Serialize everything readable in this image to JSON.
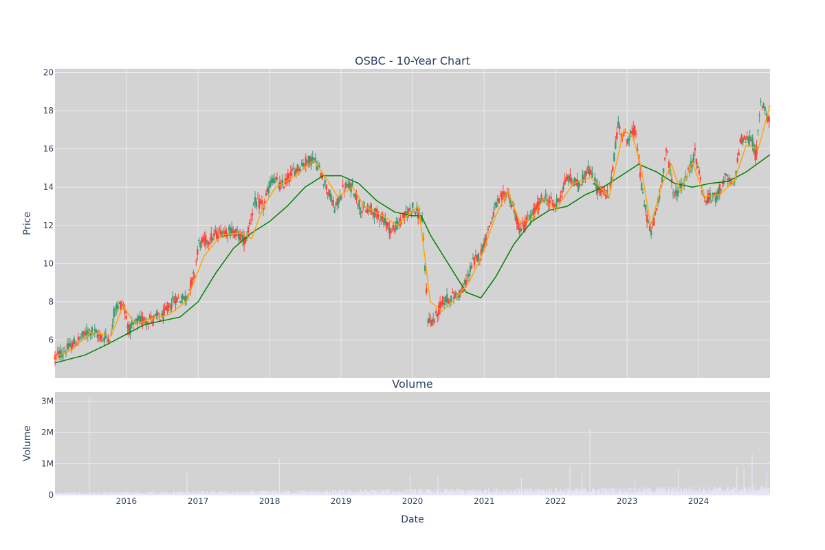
{
  "colors": {
    "plot_bg": "#d3d3d3",
    "grid": "#ebebeb",
    "increasing": "#3d9970",
    "decreasing": "#ff4136",
    "ma_short": "#ffa500",
    "ma_long": "#008000",
    "volume": "#e6e6f7",
    "text": "#2a3f5f"
  },
  "chart_data": [
    {
      "type": "candlestick",
      "title": "OSBC - 10-Year Chart",
      "ylabel": "Price",
      "ylim": [
        4,
        20.2
      ],
      "xlim": [
        "2015-01-01",
        "2024-12-31"
      ],
      "y_ticks": [
        6,
        8,
        10,
        12,
        14,
        16,
        18,
        20
      ],
      "x_ticks": [
        "2016",
        "2017",
        "2018",
        "2019",
        "2020",
        "2021",
        "2022",
        "2023",
        "2024"
      ],
      "grid": true,
      "legend": "none",
      "price_path": [
        [
          "2015-01-01",
          5.1
        ],
        [
          "2015-03-01",
          5.5
        ],
        [
          "2015-05-01",
          6.0
        ],
        [
          "2015-07-01",
          6.5
        ],
        [
          "2015-09-01",
          6.1
        ],
        [
          "2015-10-15",
          6.2
        ],
        [
          "2015-11-01",
          7.7
        ],
        [
          "2015-12-15",
          7.9
        ],
        [
          "2016-01-15",
          6.5
        ],
        [
          "2016-03-01",
          7.0
        ],
        [
          "2016-05-01",
          7.1
        ],
        [
          "2016-07-01",
          7.2
        ],
        [
          "2016-09-01",
          8.1
        ],
        [
          "2016-11-01",
          8.2
        ],
        [
          "2016-12-15",
          9.5
        ],
        [
          "2017-01-01",
          11.0
        ],
        [
          "2017-03-01",
          11.3
        ],
        [
          "2017-05-01",
          11.7
        ],
        [
          "2017-07-01",
          11.7
        ],
        [
          "2017-09-01",
          11.2
        ],
        [
          "2017-10-15",
          13.2
        ],
        [
          "2017-12-01",
          13.0
        ],
        [
          "2018-01-15",
          14.5
        ],
        [
          "2018-03-01",
          14.0
        ],
        [
          "2018-05-01",
          14.8
        ],
        [
          "2018-07-01",
          15.3
        ],
        [
          "2018-08-15",
          15.5
        ],
        [
          "2018-10-01",
          14.5
        ],
        [
          "2018-12-01",
          12.8
        ],
        [
          "2019-01-15",
          14.0
        ],
        [
          "2019-03-01",
          14.0
        ],
        [
          "2019-04-15",
          12.8
        ],
        [
          "2019-06-01",
          12.8
        ],
        [
          "2019-08-01",
          12.4
        ],
        [
          "2019-09-15",
          11.7
        ],
        [
          "2019-11-01",
          12.2
        ],
        [
          "2020-01-01",
          13.0
        ],
        [
          "2020-02-20",
          12.3
        ],
        [
          "2020-03-20",
          7.0
        ],
        [
          "2020-04-20",
          7.0
        ],
        [
          "2020-06-01",
          8.0
        ],
        [
          "2020-08-01",
          8.3
        ],
        [
          "2020-09-15",
          8.6
        ],
        [
          "2020-11-01",
          10.0
        ],
        [
          "2020-12-15",
          10.5
        ],
        [
          "2021-03-01",
          13.0
        ],
        [
          "2021-05-01",
          13.8
        ],
        [
          "2021-07-01",
          11.8
        ],
        [
          "2021-09-01",
          12.5
        ],
        [
          "2021-11-01",
          13.5
        ],
        [
          "2022-01-01",
          13.0
        ],
        [
          "2022-03-01",
          14.5
        ],
        [
          "2022-05-01",
          14.1
        ],
        [
          "2022-06-15",
          15.0
        ],
        [
          "2022-08-01",
          14.0
        ],
        [
          "2022-10-01",
          13.5
        ],
        [
          "2022-11-15",
          17.2
        ],
        [
          "2023-01-01",
          16.5
        ],
        [
          "2023-02-15",
          17.0
        ],
        [
          "2023-03-15",
          14.0
        ],
        [
          "2023-05-01",
          11.5
        ],
        [
          "2023-06-15",
          13.5
        ],
        [
          "2023-07-20",
          16.0
        ],
        [
          "2023-09-01",
          13.5
        ],
        [
          "2023-11-01",
          14.5
        ],
        [
          "2023-12-15",
          15.8
        ],
        [
          "2024-02-01",
          13.3
        ],
        [
          "2024-04-01",
          13.5
        ],
        [
          "2024-05-15",
          14.5
        ],
        [
          "2024-07-01",
          14.0
        ],
        [
          "2024-08-01",
          16.5
        ],
        [
          "2024-10-01",
          16.5
        ],
        [
          "2024-10-20",
          15.5
        ],
        [
          "2024-11-15",
          18.5
        ],
        [
          "2024-12-31",
          17.5
        ]
      ],
      "ma_short_path": [
        [
          "2015-01-01",
          5.1
        ],
        [
          "2015-04-01",
          5.5
        ],
        [
          "2015-07-01",
          6.4
        ],
        [
          "2015-10-15",
          6.2
        ],
        [
          "2015-12-15",
          7.8
        ],
        [
          "2016-02-15",
          6.8
        ],
        [
          "2016-05-01",
          7.1
        ],
        [
          "2016-08-01",
          7.3
        ],
        [
          "2016-11-01",
          8.0
        ],
        [
          "2017-02-01",
          10.4
        ],
        [
          "2017-05-01",
          11.5
        ],
        [
          "2017-08-01",
          11.6
        ],
        [
          "2017-10-01",
          11.3
        ],
        [
          "2017-12-01",
          13.0
        ],
        [
          "2018-02-01",
          14.0
        ],
        [
          "2018-05-01",
          14.5
        ],
        [
          "2018-08-15",
          15.4
        ],
        [
          "2018-10-15",
          14.5
        ],
        [
          "2018-12-15",
          13.5
        ],
        [
          "2019-03-01",
          14.0
        ],
        [
          "2019-05-01",
          13.0
        ],
        [
          "2019-08-01",
          12.5
        ],
        [
          "2019-10-15",
          12.0
        ],
        [
          "2019-12-15",
          12.6
        ],
        [
          "2020-02-01",
          13.0
        ],
        [
          "2020-04-01",
          8.0
        ],
        [
          "2020-06-01",
          7.5
        ],
        [
          "2020-08-01",
          8.1
        ],
        [
          "2020-10-15",
          9.0
        ],
        [
          "2020-12-15",
          10.3
        ],
        [
          "2021-03-01",
          12.5
        ],
        [
          "2021-05-01",
          13.8
        ],
        [
          "2021-07-01",
          12.2
        ],
        [
          "2021-09-01",
          12.3
        ],
        [
          "2021-11-01",
          13.4
        ],
        [
          "2022-01-01",
          12.8
        ],
        [
          "2022-04-01",
          14.2
        ],
        [
          "2022-07-01",
          14.5
        ],
        [
          "2022-10-01",
          13.5
        ],
        [
          "2022-12-15",
          17.0
        ],
        [
          "2023-02-01",
          16.6
        ],
        [
          "2023-03-15",
          15.0
        ],
        [
          "2023-05-01",
          12.0
        ],
        [
          "2023-07-01",
          14.2
        ],
        [
          "2023-08-15",
          15.2
        ],
        [
          "2023-10-01",
          13.8
        ],
        [
          "2023-12-01",
          15.3
        ],
        [
          "2024-02-01",
          13.5
        ],
        [
          "2024-04-15",
          13.6
        ],
        [
          "2024-07-01",
          14.3
        ],
        [
          "2024-09-01",
          16.2
        ],
        [
          "2024-11-01",
          16.0
        ],
        [
          "2024-12-31",
          18.3
        ]
      ],
      "ma_long_path": [
        [
          "2015-01-01",
          4.8
        ],
        [
          "2015-06-01",
          5.2
        ],
        [
          "2015-10-01",
          5.8
        ],
        [
          "2016-01-01",
          6.3
        ],
        [
          "2016-04-01",
          6.8
        ],
        [
          "2016-07-01",
          7.0
        ],
        [
          "2016-10-01",
          7.2
        ],
        [
          "2017-01-01",
          8.0
        ],
        [
          "2017-04-01",
          9.5
        ],
        [
          "2017-07-01",
          10.8
        ],
        [
          "2017-10-01",
          11.6
        ],
        [
          "2018-01-01",
          12.2
        ],
        [
          "2018-04-01",
          13.0
        ],
        [
          "2018-07-01",
          14.0
        ],
        [
          "2018-10-01",
          14.6
        ],
        [
          "2019-01-01",
          14.6
        ],
        [
          "2019-04-01",
          14.2
        ],
        [
          "2019-07-01",
          13.3
        ],
        [
          "2019-10-01",
          12.7
        ],
        [
          "2020-01-01",
          12.5
        ],
        [
          "2020-02-15",
          12.5
        ],
        [
          "2020-04-01",
          11.5
        ],
        [
          "2020-07-01",
          10.0
        ],
        [
          "2020-10-01",
          8.5
        ],
        [
          "2020-12-15",
          8.2
        ],
        [
          "2021-03-01",
          9.3
        ],
        [
          "2021-06-01",
          11.0
        ],
        [
          "2021-09-01",
          12.2
        ],
        [
          "2021-12-01",
          12.8
        ],
        [
          "2022-03-01",
          13.0
        ],
        [
          "2022-06-01",
          13.6
        ],
        [
          "2022-09-01",
          14.0
        ],
        [
          "2022-12-01",
          14.6
        ],
        [
          "2023-03-01",
          15.2
        ],
        [
          "2023-06-01",
          14.8
        ],
        [
          "2023-09-01",
          14.2
        ],
        [
          "2023-12-01",
          14.0
        ],
        [
          "2024-03-01",
          14.2
        ],
        [
          "2024-06-01",
          14.3
        ],
        [
          "2024-09-01",
          14.8
        ],
        [
          "2024-12-31",
          15.7
        ]
      ]
    },
    {
      "type": "bar",
      "title": "Volume",
      "xlabel": "Date",
      "ylabel": "Volume",
      "ylim": [
        0,
        3300000
      ],
      "y_ticks": [
        0,
        1000000,
        2000000,
        3000000
      ],
      "y_tick_labels": [
        "0",
        "1M",
        "2M",
        "3M"
      ],
      "baseline_volume": 100000,
      "spikes": [
        [
          "2015-06-25",
          3100000
        ],
        [
          "2018-02-20",
          1150000
        ],
        [
          "2022-06-25",
          2100000
        ],
        [
          "2024-10-01",
          1300000
        ],
        [
          "2022-03-15",
          950000
        ],
        [
          "2023-09-20",
          800000
        ],
        [
          "2024-07-15",
          900000
        ],
        [
          "2024-08-20",
          850000
        ],
        [
          "2016-11-05",
          700000
        ],
        [
          "2019-12-20",
          650000
        ],
        [
          "2020-05-10",
          600000
        ],
        [
          "2021-07-10",
          550000
        ],
        [
          "2022-05-15",
          750000
        ],
        [
          "2023-02-10",
          500000
        ],
        [
          "2024-12-15",
          700000
        ]
      ]
    }
  ]
}
